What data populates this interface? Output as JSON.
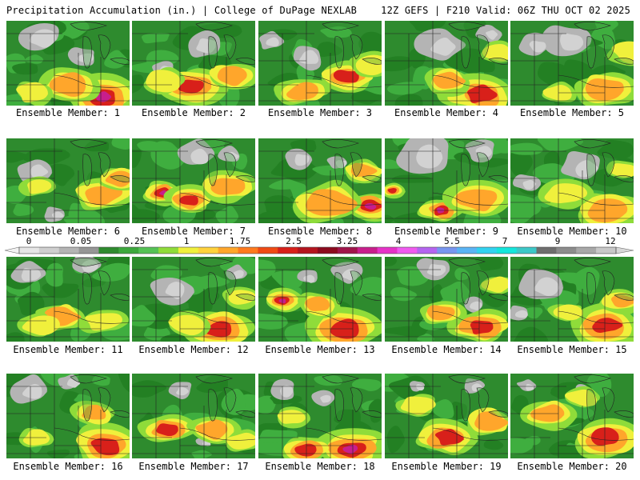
{
  "header": {
    "left": "Precipitation Accumulation (in.) | College of DuPage NEXLAB",
    "right": "12Z GEFS | F210 Valid: 06Z THU OCT 02 2025"
  },
  "member_label_prefix": "Ensemble Member: ",
  "members": [
    "1",
    "2",
    "3",
    "4",
    "5",
    "6",
    "7",
    "8",
    "9",
    "10",
    "11",
    "12",
    "13",
    "14",
    "15",
    "16",
    "17",
    "18",
    "19",
    "20"
  ],
  "colorbar": {
    "labels": [
      "0",
      "0.05",
      "0.25",
      "1",
      "1.75",
      "2.5",
      "3.25",
      "4",
      "5.5",
      "7",
      "9",
      "12"
    ],
    "colors": [
      "#e6e6e6",
      "#cfcfcf",
      "#b4b4b4",
      "#969696",
      "#2e8b2e",
      "#3da83d",
      "#55c255",
      "#8fdc3a",
      "#f0f03c",
      "#ffd23c",
      "#ffa62b",
      "#ff7a1e",
      "#f04a14",
      "#d8201a",
      "#b4141e",
      "#8c0a1e",
      "#a0144a",
      "#c81e8c",
      "#e632c8",
      "#f05af0",
      "#b464f0",
      "#7896f0",
      "#5ab4f5",
      "#32d2f0",
      "#14e6dc",
      "#3cc8c8",
      "#6e6e6e",
      "#8c8c8c",
      "#a8a8a8",
      "#c8c8c8"
    ]
  },
  "legend_colors": {
    "gray": "#b4b4b4",
    "green": "#2e8b2e",
    "yellow": "#f0f03c",
    "orange": "#ffa62b",
    "red": "#d8201a",
    "magenta": "#c81e8c"
  }
}
